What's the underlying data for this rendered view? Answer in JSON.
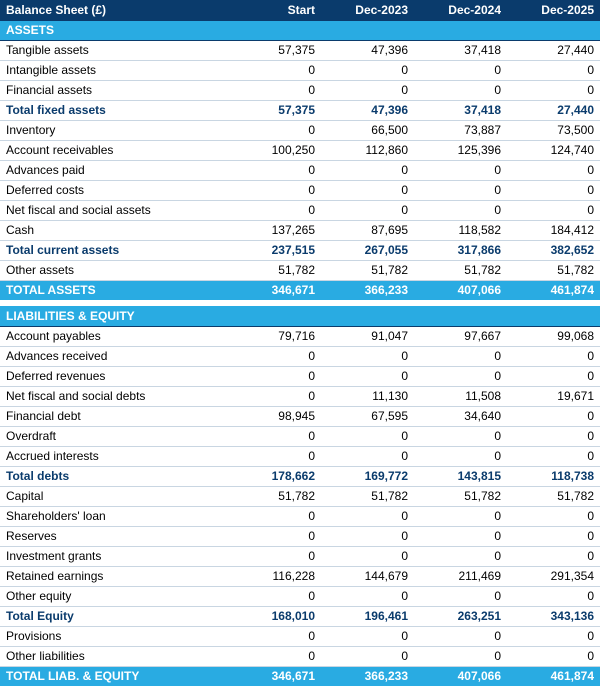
{
  "colors": {
    "header_bg": "#0a3b6c",
    "header_fg": "#ffffff",
    "section_bg": "#29abe2",
    "section_fg": "#ffffff",
    "section_border": "#0a3b6c",
    "total_bg": "#29abe2",
    "total_fg": "#ffffff",
    "subtotal_fg": "#0a3b6c",
    "row_border": "#c9d6e2",
    "normal_fg": "#000000"
  },
  "header": {
    "title": "Balance Sheet (£)",
    "cols": [
      "Start",
      "Dec-2023",
      "Dec-2024",
      "Dec-2025"
    ]
  },
  "rows": [
    {
      "type": "section",
      "label": "ASSETS"
    },
    {
      "type": "normal",
      "label": "Tangible assets",
      "v": [
        "57,375",
        "47,396",
        "37,418",
        "27,440"
      ]
    },
    {
      "type": "normal",
      "label": "Intangible assets",
      "v": [
        "0",
        "0",
        "0",
        "0"
      ]
    },
    {
      "type": "normal",
      "label": "Financial assets",
      "v": [
        "0",
        "0",
        "0",
        "0"
      ]
    },
    {
      "type": "subtotal",
      "label": "Total fixed assets",
      "v": [
        "57,375",
        "47,396",
        "37,418",
        "27,440"
      ]
    },
    {
      "type": "normal",
      "label": "Inventory",
      "v": [
        "0",
        "66,500",
        "73,887",
        "73,500"
      ]
    },
    {
      "type": "normal",
      "label": "Account receivables",
      "v": [
        "100,250",
        "112,860",
        "125,396",
        "124,740"
      ]
    },
    {
      "type": "normal",
      "label": "Advances paid",
      "v": [
        "0",
        "0",
        "0",
        "0"
      ]
    },
    {
      "type": "normal",
      "label": "Deferred costs",
      "v": [
        "0",
        "0",
        "0",
        "0"
      ]
    },
    {
      "type": "normal",
      "label": "Net fiscal and social assets",
      "v": [
        "0",
        "0",
        "0",
        "0"
      ]
    },
    {
      "type": "normal",
      "label": "Cash",
      "v": [
        "137,265",
        "87,695",
        "118,582",
        "184,412"
      ]
    },
    {
      "type": "subtotal",
      "label": "Total current assets",
      "v": [
        "237,515",
        "267,055",
        "317,866",
        "382,652"
      ]
    },
    {
      "type": "normal",
      "label": "Other assets",
      "v": [
        "51,782",
        "51,782",
        "51,782",
        "51,782"
      ]
    },
    {
      "type": "total",
      "label": "TOTAL ASSETS",
      "v": [
        "346,671",
        "366,233",
        "407,066",
        "461,874"
      ]
    },
    {
      "type": "spacer"
    },
    {
      "type": "section",
      "label": "LIABILITIES & EQUITY"
    },
    {
      "type": "normal",
      "label": "Account payables",
      "v": [
        "79,716",
        "91,047",
        "97,667",
        "99,068"
      ]
    },
    {
      "type": "normal",
      "label": "Advances received",
      "v": [
        "0",
        "0",
        "0",
        "0"
      ]
    },
    {
      "type": "normal",
      "label": "Deferred revenues",
      "v": [
        "0",
        "0",
        "0",
        "0"
      ]
    },
    {
      "type": "normal",
      "label": "Net fiscal and social debts",
      "v": [
        "0",
        "11,130",
        "11,508",
        "19,671"
      ]
    },
    {
      "type": "normal",
      "label": "Financial debt",
      "v": [
        "98,945",
        "67,595",
        "34,640",
        "0"
      ]
    },
    {
      "type": "normal",
      "label": "Overdraft",
      "v": [
        "0",
        "0",
        "0",
        "0"
      ]
    },
    {
      "type": "normal",
      "label": "Accrued interests",
      "v": [
        "0",
        "0",
        "0",
        "0"
      ]
    },
    {
      "type": "subtotal",
      "label": "Total debts",
      "v": [
        "178,662",
        "169,772",
        "143,815",
        "118,738"
      ]
    },
    {
      "type": "normal",
      "label": "Capital",
      "v": [
        "51,782",
        "51,782",
        "51,782",
        "51,782"
      ]
    },
    {
      "type": "normal",
      "label": "Shareholders' loan",
      "v": [
        "0",
        "0",
        "0",
        "0"
      ]
    },
    {
      "type": "normal",
      "label": "Reserves",
      "v": [
        "0",
        "0",
        "0",
        "0"
      ]
    },
    {
      "type": "normal",
      "label": "Investment grants",
      "v": [
        "0",
        "0",
        "0",
        "0"
      ]
    },
    {
      "type": "normal",
      "label": "Retained earnings",
      "v": [
        "116,228",
        "144,679",
        "211,469",
        "291,354"
      ]
    },
    {
      "type": "normal",
      "label": "Other equity",
      "v": [
        "0",
        "0",
        "0",
        "0"
      ]
    },
    {
      "type": "subtotal",
      "label": "Total Equity",
      "v": [
        "168,010",
        "196,461",
        "263,251",
        "343,136"
      ]
    },
    {
      "type": "normal",
      "label": "Provisions",
      "v": [
        "0",
        "0",
        "0",
        "0"
      ]
    },
    {
      "type": "normal",
      "label": "Other liabilities",
      "v": [
        "0",
        "0",
        "0",
        "0"
      ]
    },
    {
      "type": "total",
      "label": "TOTAL LIAB. & EQUITY",
      "v": [
        "346,671",
        "366,233",
        "407,066",
        "461,874"
      ]
    }
  ]
}
